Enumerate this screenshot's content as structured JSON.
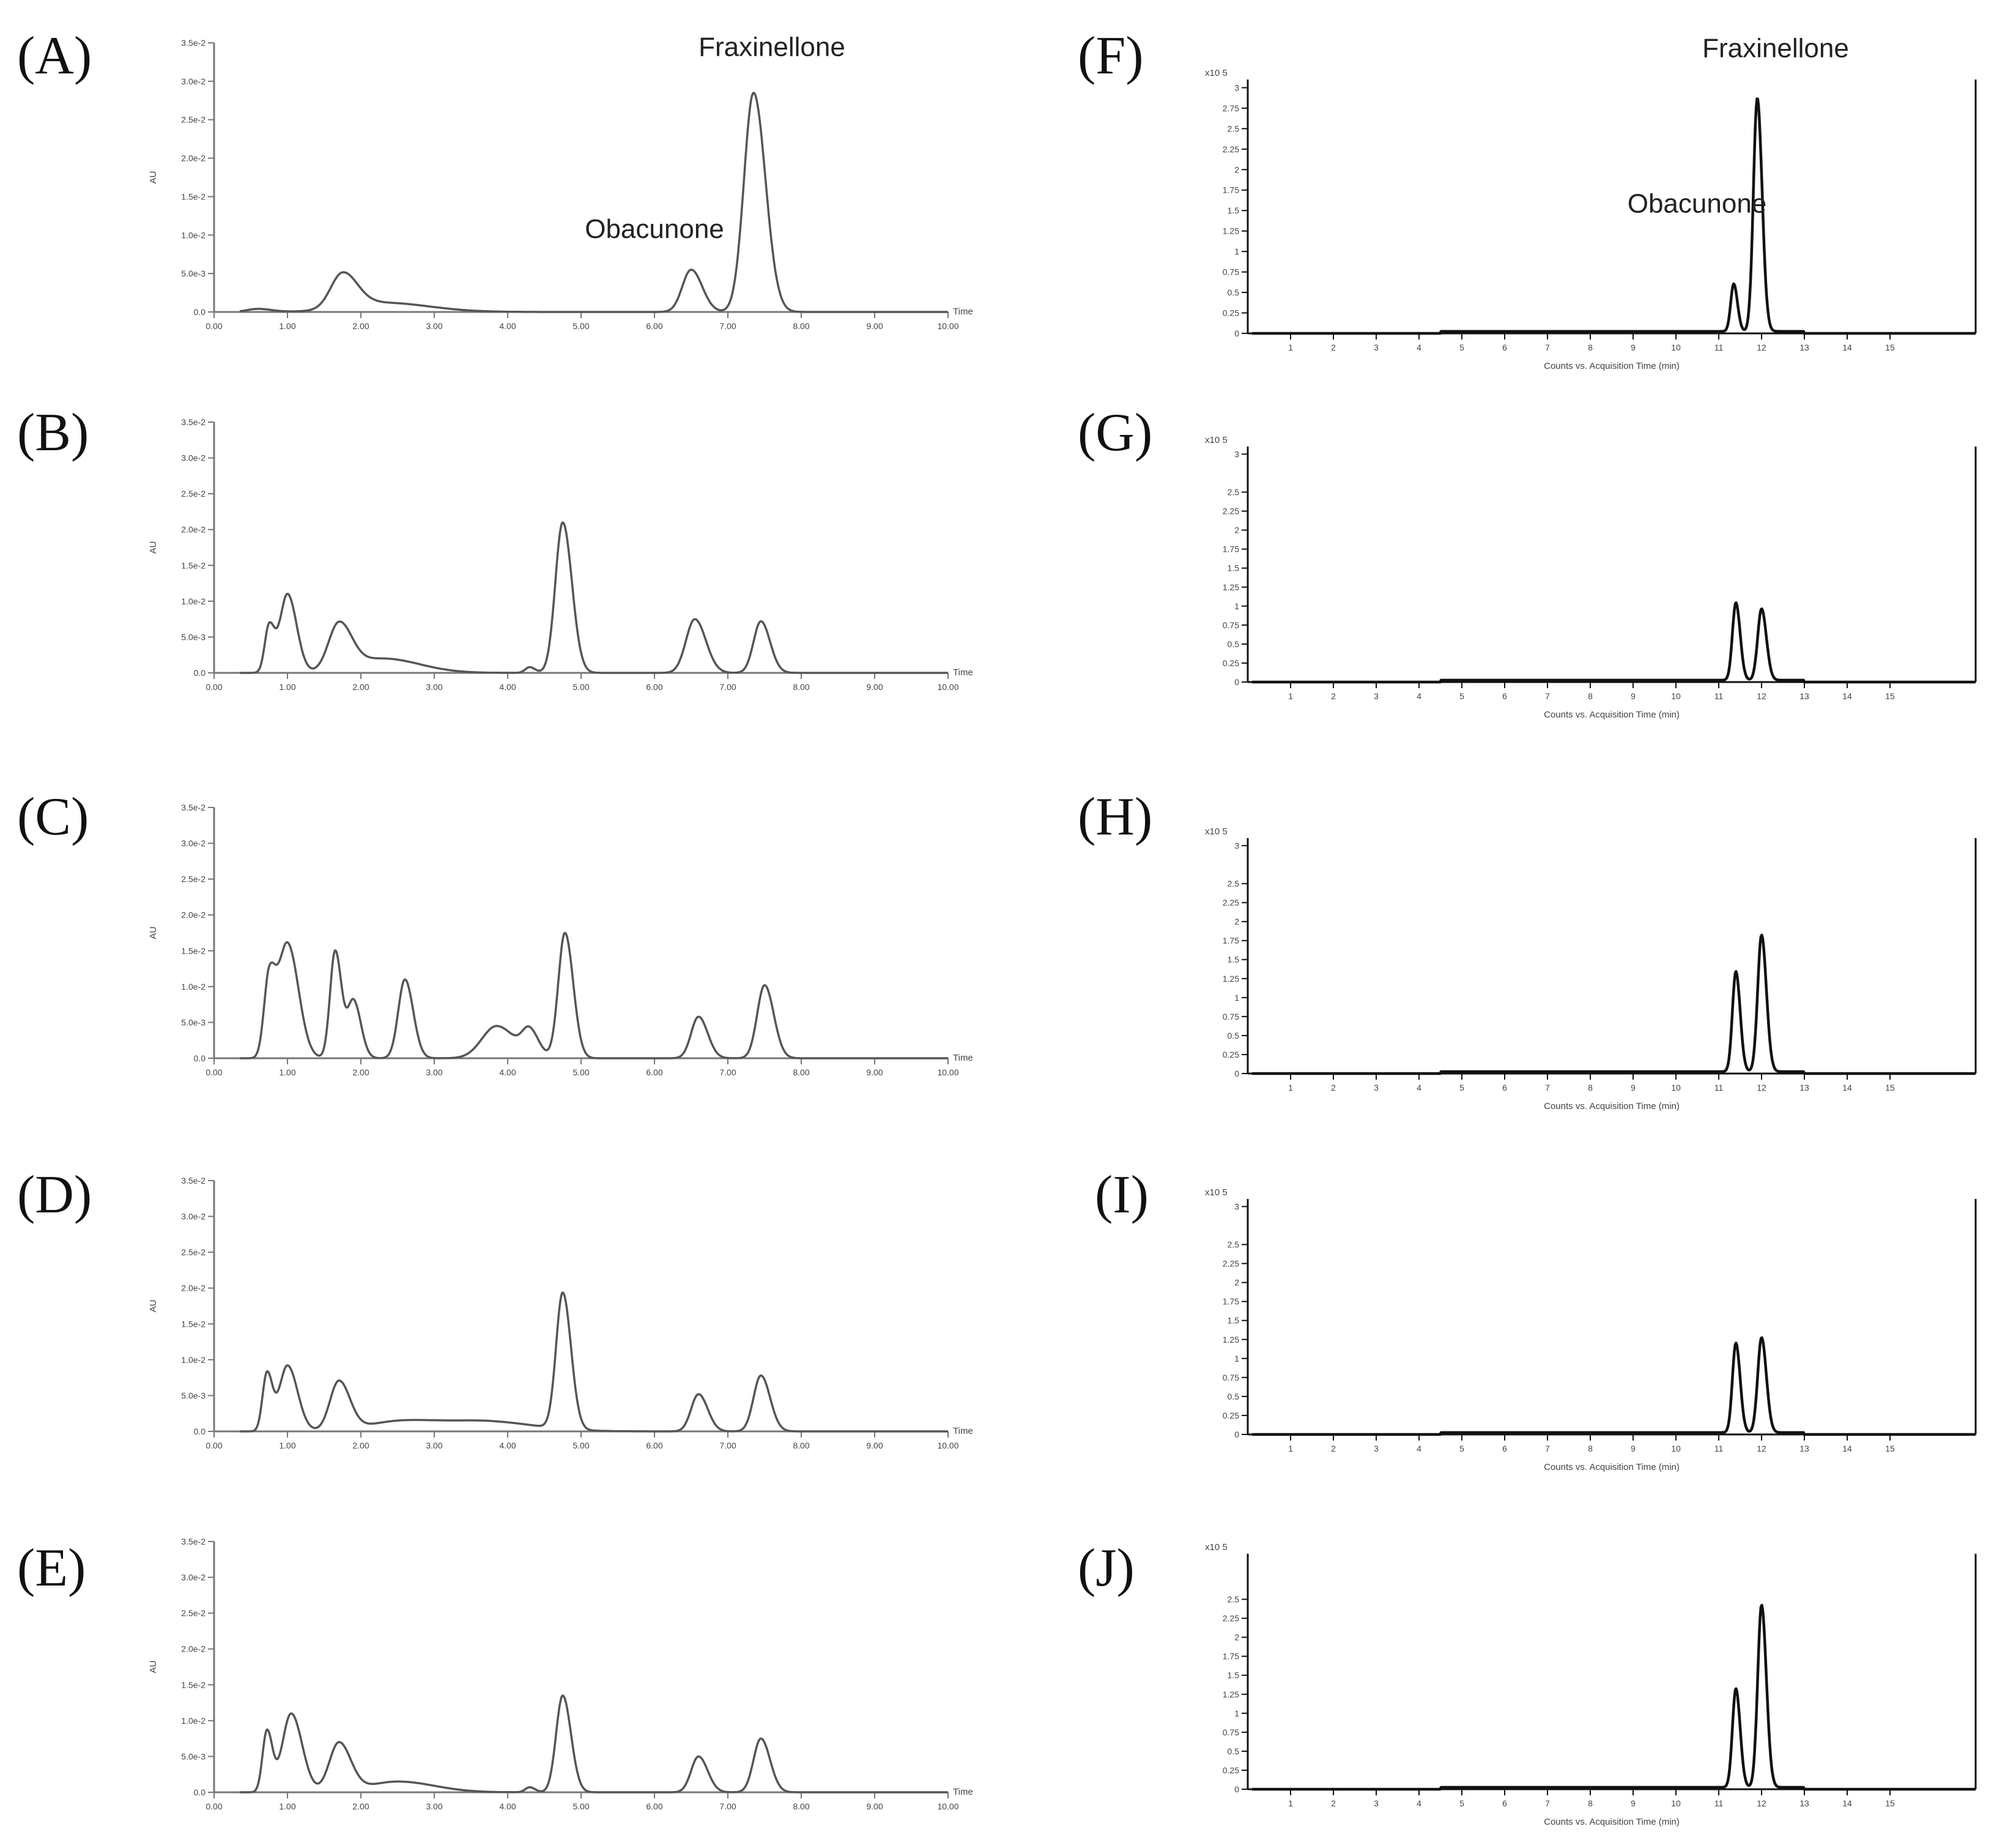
{
  "chart_data": [
    {
      "id": "A",
      "panel": "(A)",
      "type": "line",
      "style": "hplc",
      "xlim": [
        0,
        10
      ],
      "ylim": [
        0,
        0.035
      ],
      "xticks": [
        "0.00",
        "1.00",
        "2.00",
        "3.00",
        "4.00",
        "5.00",
        "6.00",
        "7.00",
        "8.00",
        "9.00",
        "10.00"
      ],
      "yticks": [
        "0.0",
        "5.0e-3",
        "1.0e-2",
        "1.5e-2",
        "2.0e-2",
        "2.5e-2",
        "3.0e-2",
        "3.5e-2"
      ],
      "ylabel": "AU",
      "xlabel": "Time",
      "peaks": [
        [
          0.6,
          0.0004,
          0.15
        ],
        [
          1.75,
          0.0045,
          0.16
        ],
        [
          2.3,
          0.0012,
          0.5
        ],
        [
          6.5,
          0.0055,
          0.12
        ],
        [
          7.35,
          0.0285,
          0.13
        ]
      ],
      "annotations": [
        {
          "text": "Fraxinellone",
          "x": 7.35,
          "y": 0.0285
        },
        {
          "text": "Obacunone",
          "x": 6.5,
          "y": 0.0055
        }
      ]
    },
    {
      "id": "B",
      "panel": "(B)",
      "type": "line",
      "style": "hplc",
      "xlim": [
        0,
        10
      ],
      "ylim": [
        0,
        0.035
      ],
      "xticks": [
        "0.00",
        "1.00",
        "2.00",
        "3.00",
        "4.00",
        "5.00",
        "6.00",
        "7.00",
        "8.00",
        "9.00",
        "10.00"
      ],
      "yticks": [
        "0.0",
        "5.0e-3",
        "1.0e-2",
        "1.5e-2",
        "2.0e-2",
        "2.5e-2",
        "3.0e-2",
        "3.5e-2"
      ],
      "ylabel": "AU",
      "xlabel": "Time",
      "peaks": [
        [
          0.75,
          0.0065,
          0.06
        ],
        [
          1.0,
          0.011,
          0.1
        ],
        [
          1.7,
          0.0065,
          0.14
        ],
        [
          2.3,
          0.002,
          0.4
        ],
        [
          4.3,
          0.0008,
          0.06
        ],
        [
          4.75,
          0.021,
          0.1
        ],
        [
          6.55,
          0.0075,
          0.12
        ],
        [
          7.45,
          0.0072,
          0.1
        ]
      ],
      "annotations": []
    },
    {
      "id": "C",
      "panel": "(C)",
      "type": "line",
      "style": "hplc",
      "xlim": [
        0,
        10
      ],
      "ylim": [
        0,
        0.035
      ],
      "xticks": [
        "0.00",
        "1.00",
        "2.00",
        "3.00",
        "4.00",
        "5.00",
        "6.00",
        "7.00",
        "8.00",
        "9.00",
        "10.00"
      ],
      "yticks": [
        "0.0",
        "5.0e-3",
        "1.0e-2",
        "1.5e-2",
        "2.0e-2",
        "2.5e-2",
        "3.0e-2",
        "3.5e-2"
      ],
      "ylabel": "AU",
      "xlabel": "Time",
      "peaks": [
        [
          0.75,
          0.011,
          0.07
        ],
        [
          1.0,
          0.016,
          0.12
        ],
        [
          1.65,
          0.015,
          0.07
        ],
        [
          1.9,
          0.008,
          0.08
        ],
        [
          2.6,
          0.011,
          0.09
        ],
        [
          3.85,
          0.0045,
          0.2
        ],
        [
          4.3,
          0.0035,
          0.1
        ],
        [
          4.78,
          0.0175,
          0.09
        ],
        [
          6.6,
          0.0058,
          0.1
        ],
        [
          7.5,
          0.0102,
          0.1
        ]
      ],
      "annotations": []
    },
    {
      "id": "D",
      "panel": "(D)",
      "type": "line",
      "style": "hplc",
      "xlim": [
        0,
        10
      ],
      "ylim": [
        0,
        0.035
      ],
      "xticks": [
        "0.00",
        "1.00",
        "2.00",
        "3.00",
        "4.00",
        "5.00",
        "6.00",
        "7.00",
        "8.00",
        "9.00",
        "10.00"
      ],
      "yticks": [
        "0.0",
        "5.0e-3",
        "1.0e-2",
        "1.5e-2",
        "2.0e-2",
        "2.5e-2",
        "3.0e-2",
        "3.5e-2"
      ],
      "ylabel": "AU",
      "xlabel": "Time",
      "peaks": [
        [
          0.72,
          0.008,
          0.06
        ],
        [
          1.0,
          0.0092,
          0.11
        ],
        [
          1.7,
          0.0068,
          0.12
        ],
        [
          2.6,
          0.0015,
          0.5
        ],
        [
          3.8,
          0.0012,
          0.5
        ],
        [
          4.75,
          0.019,
          0.09
        ],
        [
          6.6,
          0.0052,
          0.1
        ],
        [
          7.45,
          0.0078,
          0.1
        ]
      ],
      "annotations": []
    },
    {
      "id": "E",
      "panel": "(E)",
      "type": "line",
      "style": "hplc",
      "xlim": [
        0,
        10
      ],
      "ylim": [
        0,
        0.035
      ],
      "xticks": [
        "0.00",
        "1.00",
        "2.00",
        "3.00",
        "4.00",
        "5.00",
        "6.00",
        "7.00",
        "8.00",
        "9.00",
        "10.00"
      ],
      "yticks": [
        "0.0",
        "5.0e-3",
        "1.0e-2",
        "1.5e-2",
        "2.0e-2",
        "2.5e-2",
        "3.0e-2",
        "3.5e-2"
      ],
      "ylabel": "AU",
      "xlabel": "Time",
      "peaks": [
        [
          0.72,
          0.0085,
          0.06
        ],
        [
          1.05,
          0.011,
          0.12
        ],
        [
          1.7,
          0.0068,
          0.13
        ],
        [
          2.5,
          0.0015,
          0.4
        ],
        [
          4.3,
          0.0007,
          0.06
        ],
        [
          4.75,
          0.0135,
          0.09
        ],
        [
          6.6,
          0.005,
          0.1
        ],
        [
          7.45,
          0.0075,
          0.1
        ]
      ],
      "annotations": []
    },
    {
      "id": "F",
      "panel": "(F)",
      "type": "line",
      "style": "ms",
      "xlim": [
        0,
        17
      ],
      "ylim": [
        0,
        3.1
      ],
      "xticks": [
        "1",
        "2",
        "3",
        "4",
        "5",
        "6",
        "7",
        "8",
        "9",
        "10",
        "11",
        "12",
        "13",
        "14",
        "15"
      ],
      "yticks": [
        "0",
        "0.25",
        "0.5",
        "0.75",
        "1",
        "1.25",
        "1.5",
        "1.75",
        "2",
        "2.25",
        "2.5",
        "2.75",
        "3"
      ],
      "yscale_label": "x10 5",
      "xlabel": "Counts vs. Acquisition Time (min)",
      "peaks": [
        [
          11.35,
          0.58,
          0.07
        ],
        [
          11.9,
          2.85,
          0.09
        ]
      ],
      "annotations": [
        {
          "text": "Fraxinellone",
          "x": 11.9,
          "y": 2.85
        },
        {
          "text": "Obacunone",
          "x": 11.35,
          "y": 0.58
        }
      ]
    },
    {
      "id": "G",
      "panel": "(G)",
      "type": "line",
      "style": "ms",
      "xlim": [
        0,
        17
      ],
      "ylim": [
        0,
        3.1
      ],
      "xticks": [
        "1",
        "2",
        "3",
        "4",
        "5",
        "6",
        "7",
        "8",
        "9",
        "10",
        "11",
        "12",
        "13",
        "14",
        "15"
      ],
      "yticks": [
        "0",
        "0.25",
        "0.5",
        "0.75",
        "1",
        "1.25",
        "1.5",
        "1.75",
        "2",
        "2.25",
        "2.5",
        "3"
      ],
      "yscale_label": "x10 5",
      "xlabel": "Counts vs. Acquisition Time (min)",
      "peaks": [
        [
          11.4,
          1.02,
          0.08
        ],
        [
          12.0,
          0.94,
          0.09
        ]
      ],
      "annotations": []
    },
    {
      "id": "H",
      "panel": "(H)",
      "type": "line",
      "style": "ms",
      "xlim": [
        0,
        17
      ],
      "ylim": [
        0,
        3.1
      ],
      "xticks": [
        "1",
        "2",
        "3",
        "4",
        "5",
        "6",
        "7",
        "8",
        "9",
        "10",
        "11",
        "12",
        "13",
        "14",
        "15"
      ],
      "yticks": [
        "0",
        "0.25",
        "0.5",
        "0.75",
        "1",
        "1.25",
        "1.5",
        "1.75",
        "2",
        "2.25",
        "2.5",
        "3"
      ],
      "yscale_label": "x10 5",
      "xlabel": "Counts vs. Acquisition Time (min)",
      "peaks": [
        [
          11.4,
          1.32,
          0.08
        ],
        [
          12.0,
          1.8,
          0.09
        ]
      ],
      "annotations": []
    },
    {
      "id": "I",
      "panel": "(I)",
      "type": "line",
      "style": "ms",
      "xlim": [
        0,
        17
      ],
      "ylim": [
        0,
        3.1
      ],
      "xticks": [
        "1",
        "2",
        "3",
        "4",
        "5",
        "6",
        "7",
        "8",
        "9",
        "10",
        "11",
        "12",
        "13",
        "14",
        "15"
      ],
      "yticks": [
        "0",
        "0.25",
        "0.5",
        "0.75",
        "1",
        "1.25",
        "1.5",
        "1.75",
        "2",
        "2.25",
        "2.5",
        "3"
      ],
      "yscale_label": "x10 5",
      "xlabel": "Counts vs. Acquisition Time (min)",
      "peaks": [
        [
          11.4,
          1.18,
          0.08
        ],
        [
          12.0,
          1.25,
          0.09
        ]
      ],
      "annotations": []
    },
    {
      "id": "J",
      "panel": "(J)",
      "type": "line",
      "style": "ms",
      "xlim": [
        0,
        17
      ],
      "ylim": [
        0,
        3.1
      ],
      "xticks": [
        "1",
        "2",
        "3",
        "4",
        "5",
        "6",
        "7",
        "8",
        "9",
        "10",
        "11",
        "12",
        "13",
        "14",
        "15"
      ],
      "yticks": [
        "0",
        "0.25",
        "0.5",
        "0.75",
        "1",
        "1.25",
        "1.5",
        "1.75",
        "2",
        "2.25",
        "2.5"
      ],
      "yscale_label": "x10 5",
      "xlabel": "Counts vs. Acquisition Time (min)",
      "peaks": [
        [
          11.4,
          1.3,
          0.08
        ],
        [
          12.0,
          2.4,
          0.09
        ]
      ],
      "annotations": []
    }
  ]
}
